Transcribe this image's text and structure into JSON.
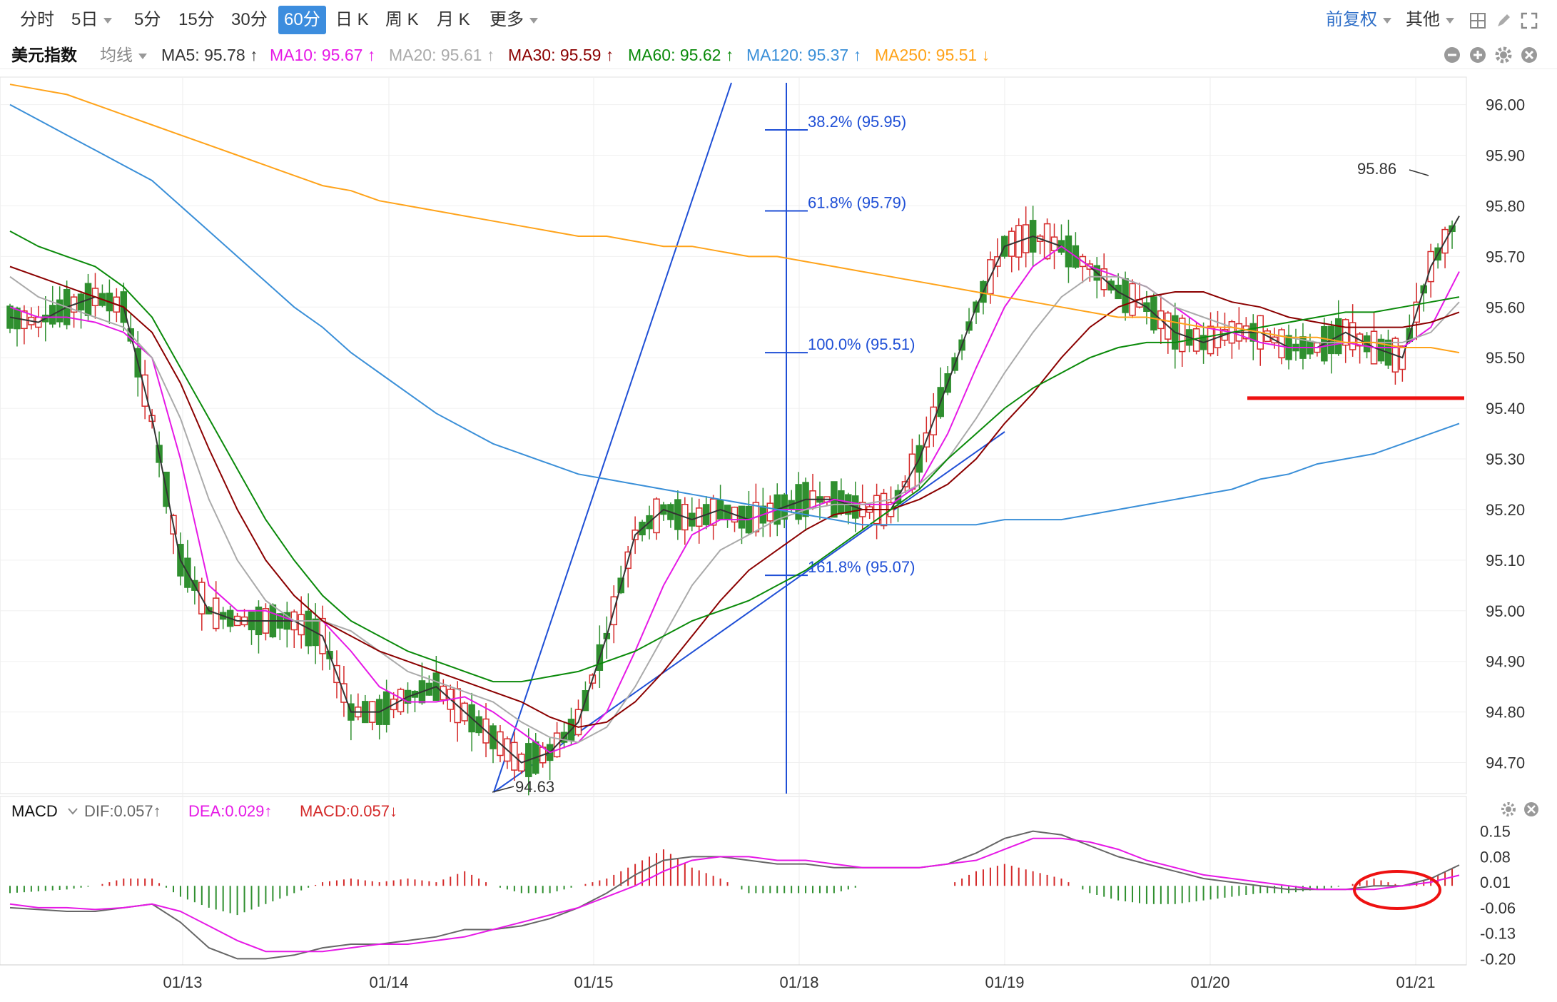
{
  "toolbar": {
    "periods": [
      "分时",
      "5日",
      "5分",
      "15分",
      "30分",
      "60分",
      "日 K",
      "周 K",
      "月 K",
      "更多"
    ],
    "active_period": "60分",
    "adjust_label": "前复权",
    "other_label": "其他"
  },
  "ma_legend": {
    "name": "美元指数",
    "type_label": "均线",
    "items": [
      {
        "label": "MA5: 95.78 ↑",
        "color": "#333333"
      },
      {
        "label": "MA10: 95.67 ↑",
        "color": "#e619e6"
      },
      {
        "label": "MA20: 95.61 ↑",
        "color": "#aaaaaa"
      },
      {
        "label": "MA30: 95.59 ↑",
        "color": "#8b0000"
      },
      {
        "label": "MA60: 95.62 ↑",
        "color": "#0a8a0a"
      },
      {
        "label": "MA120: 95.37 ↑",
        "color": "#3a8fd8"
      },
      {
        "label": "MA250: 95.51 ↓",
        "color": "#ffa31a"
      }
    ]
  },
  "macd_legend": {
    "name": "MACD",
    "items": [
      {
        "label": "DIF:0.057↑",
        "color": "#666666"
      },
      {
        "label": "DEA:0.029↑",
        "color": "#e619e6"
      },
      {
        "label": "MACD:0.057↓",
        "color": "#d42a2a"
      }
    ]
  },
  "colors": {
    "up": "#d42a2a",
    "down": "#2f8f2f",
    "fib": "#1f4fd6",
    "support": "#ee1111"
  },
  "chart_data": [
    {
      "type": "line",
      "title": "美元指数",
      "xlabel": "",
      "ylabel": "",
      "x_tick_labels": [
        "01/13",
        "01/14",
        "01/15",
        "01/18",
        "01/19",
        "01/20",
        "01/21"
      ],
      "y_tick_labels": [
        "96.00",
        "95.90",
        "95.80",
        "95.70",
        "95.60",
        "95.50",
        "95.40",
        "95.30",
        "95.20",
        "95.10",
        "95.00",
        "94.90",
        "94.80",
        "94.70"
      ],
      "ylim": [
        94.63,
        96.03
      ],
      "grid": true,
      "series": [
        {
          "name": "MA5",
          "values": [
            95.58,
            95.57,
            95.6,
            95.62,
            95.6,
            95.38,
            95.1,
            95.0,
            94.98,
            94.98,
            94.98,
            94.95,
            94.8,
            94.8,
            94.83,
            94.85,
            94.8,
            94.75,
            94.7,
            94.72,
            94.78,
            94.95,
            95.15,
            95.2,
            95.18,
            95.2,
            95.18,
            95.2,
            95.22,
            95.22,
            95.2,
            95.2,
            95.3,
            95.45,
            95.6,
            95.72,
            95.74,
            95.72,
            95.68,
            95.63,
            95.6,
            95.55,
            95.53,
            95.55,
            95.55,
            95.52,
            95.52,
            95.55,
            95.52,
            95.5,
            95.68,
            95.78
          ]
        },
        {
          "name": "MA10",
          "values": [
            95.6,
            95.58,
            95.58,
            95.57,
            95.55,
            95.5,
            95.3,
            95.05,
            95.0,
            95.0,
            94.98,
            94.98,
            94.92,
            94.85,
            94.82,
            94.82,
            94.83,
            94.8,
            94.76,
            94.72,
            94.74,
            94.8,
            94.92,
            95.05,
            95.15,
            95.18,
            95.18,
            95.2,
            95.2,
            95.22,
            95.21,
            95.21,
            95.25,
            95.35,
            95.48,
            95.6,
            95.68,
            95.72,
            95.68,
            95.66,
            95.64,
            95.6,
            95.56,
            95.55,
            95.53,
            95.52,
            95.52,
            95.53,
            95.52,
            95.52,
            95.56,
            95.67
          ]
        },
        {
          "name": "MA20",
          "values": [
            95.66,
            95.62,
            95.6,
            95.58,
            95.56,
            95.5,
            95.38,
            95.22,
            95.1,
            95.02,
            94.98,
            94.98,
            94.96,
            94.92,
            94.88,
            94.86,
            94.84,
            94.82,
            94.78,
            94.75,
            94.74,
            94.77,
            94.85,
            94.95,
            95.05,
            95.12,
            95.15,
            95.18,
            95.2,
            95.21,
            95.21,
            95.22,
            95.25,
            95.3,
            95.38,
            95.47,
            95.55,
            95.62,
            95.66,
            95.66,
            95.64,
            95.6,
            95.58,
            95.56,
            95.55,
            95.54,
            95.53,
            95.53,
            95.53,
            95.53,
            95.55,
            95.61
          ]
        },
        {
          "name": "MA30",
          "values": [
            95.68,
            95.66,
            95.64,
            95.62,
            95.6,
            95.55,
            95.45,
            95.32,
            95.2,
            95.1,
            95.03,
            94.98,
            94.95,
            94.92,
            94.9,
            94.88,
            94.86,
            94.84,
            94.82,
            94.79,
            94.77,
            94.78,
            94.82,
            94.88,
            94.95,
            95.02,
            95.08,
            95.12,
            95.16,
            95.19,
            95.2,
            95.2,
            95.22,
            95.25,
            95.3,
            95.37,
            95.43,
            95.5,
            95.56,
            95.6,
            95.62,
            95.63,
            95.63,
            95.61,
            95.6,
            95.58,
            95.57,
            95.56,
            95.56,
            95.56,
            95.57,
            95.59
          ]
        },
        {
          "name": "MA60",
          "values": [
            95.75,
            95.72,
            95.7,
            95.68,
            95.64,
            95.58,
            95.48,
            95.38,
            95.28,
            95.18,
            95.1,
            95.03,
            94.98,
            94.95,
            94.92,
            94.9,
            94.88,
            94.86,
            94.86,
            94.87,
            94.88,
            94.9,
            94.92,
            94.95,
            94.98,
            95.0,
            95.02,
            95.05,
            95.08,
            95.12,
            95.16,
            95.2,
            95.24,
            95.3,
            95.35,
            95.4,
            95.44,
            95.47,
            95.5,
            95.52,
            95.53,
            95.53,
            95.54,
            95.55,
            95.56,
            95.57,
            95.58,
            95.59,
            95.59,
            95.6,
            95.61,
            95.62
          ]
        },
        {
          "name": "MA120",
          "values": [
            96.0,
            95.97,
            95.94,
            95.91,
            95.88,
            95.85,
            95.8,
            95.75,
            95.7,
            95.65,
            95.6,
            95.56,
            95.51,
            95.47,
            95.43,
            95.39,
            95.36,
            95.33,
            95.31,
            95.29,
            95.27,
            95.26,
            95.25,
            95.24,
            95.23,
            95.22,
            95.21,
            95.2,
            95.19,
            95.18,
            95.17,
            95.17,
            95.17,
            95.17,
            95.17,
            95.18,
            95.18,
            95.18,
            95.19,
            95.2,
            95.21,
            95.22,
            95.23,
            95.24,
            95.26,
            95.27,
            95.29,
            95.3,
            95.31,
            95.33,
            95.35,
            95.37
          ]
        },
        {
          "name": "MA250",
          "values": [
            96.04,
            96.03,
            96.02,
            96.0,
            95.98,
            95.96,
            95.94,
            95.92,
            95.9,
            95.88,
            95.86,
            95.84,
            95.83,
            95.81,
            95.8,
            95.79,
            95.78,
            95.77,
            95.76,
            95.75,
            95.74,
            95.74,
            95.73,
            95.72,
            95.72,
            95.71,
            95.7,
            95.7,
            95.69,
            95.68,
            95.67,
            95.66,
            95.65,
            95.64,
            95.63,
            95.62,
            95.61,
            95.6,
            95.59,
            95.58,
            95.58,
            95.57,
            95.56,
            95.56,
            95.55,
            95.54,
            95.54,
            95.53,
            95.53,
            95.52,
            95.52,
            95.51
          ]
        }
      ],
      "annotations": [
        {
          "text": "94.63",
          "value": 94.63
        },
        {
          "text": "95.86",
          "value": 95.86
        },
        {
          "text": "38.2% (95.95)",
          "value": 95.95
        },
        {
          "text": "61.8% (95.79)",
          "value": 95.79
        },
        {
          "text": "100.0% (95.51)",
          "value": 95.51
        },
        {
          "text": "161.8% (95.07)",
          "value": 95.07
        }
      ],
      "support_level": 95.42
    },
    {
      "type": "bar",
      "title": "MACD",
      "y_tick_labels": [
        "0.15",
        "0.08",
        "0.01",
        "-0.06",
        "-0.13",
        "-0.20"
      ],
      "ylim": [
        -0.205,
        0.155
      ],
      "series": [
        {
          "name": "DIF",
          "values": [
            -0.06,
            -0.065,
            -0.07,
            -0.07,
            -0.06,
            -0.05,
            -0.1,
            -0.17,
            -0.2,
            -0.2,
            -0.19,
            -0.17,
            -0.16,
            -0.16,
            -0.15,
            -0.14,
            -0.12,
            -0.12,
            -0.11,
            -0.09,
            -0.06,
            -0.02,
            0.03,
            0.07,
            0.08,
            0.08,
            0.07,
            0.06,
            0.06,
            0.05,
            0.05,
            0.05,
            0.05,
            0.06,
            0.09,
            0.13,
            0.15,
            0.14,
            0.11,
            0.08,
            0.06,
            0.04,
            0.02,
            0.01,
            0.0,
            -0.01,
            -0.01,
            -0.01,
            0.0,
            0.0,
            0.02,
            0.057
          ]
        },
        {
          "name": "DEA",
          "values": [
            -0.05,
            -0.06,
            -0.06,
            -0.065,
            -0.06,
            -0.05,
            -0.07,
            -0.11,
            -0.15,
            -0.18,
            -0.18,
            -0.18,
            -0.17,
            -0.16,
            -0.16,
            -0.15,
            -0.14,
            -0.12,
            -0.1,
            -0.08,
            -0.06,
            -0.03,
            0.0,
            0.04,
            0.07,
            0.08,
            0.08,
            0.07,
            0.07,
            0.06,
            0.05,
            0.05,
            0.05,
            0.06,
            0.07,
            0.1,
            0.13,
            0.13,
            0.12,
            0.1,
            0.07,
            0.05,
            0.03,
            0.02,
            0.01,
            0.0,
            -0.01,
            -0.01,
            -0.01,
            0.0,
            0.01,
            0.029
          ]
        },
        {
          "name": "MACD",
          "values": [
            -0.02,
            -0.015,
            -0.01,
            0.0,
            0.02,
            0.02,
            -0.03,
            -0.06,
            -0.08,
            -0.05,
            -0.02,
            0.01,
            0.02,
            0.01,
            0.02,
            0.01,
            0.04,
            0.0,
            -0.02,
            -0.02,
            0.0,
            0.02,
            0.06,
            0.1,
            0.05,
            0.02,
            -0.02,
            -0.02,
            -0.02,
            -0.02,
            0.0,
            0.0,
            0.0,
            0.0,
            0.04,
            0.06,
            0.04,
            0.02,
            -0.02,
            -0.04,
            -0.05,
            -0.05,
            -0.04,
            -0.03,
            -0.02,
            -0.02,
            -0.01,
            0.0,
            0.02,
            0.0,
            0.02,
            0.057
          ]
        }
      ]
    }
  ]
}
